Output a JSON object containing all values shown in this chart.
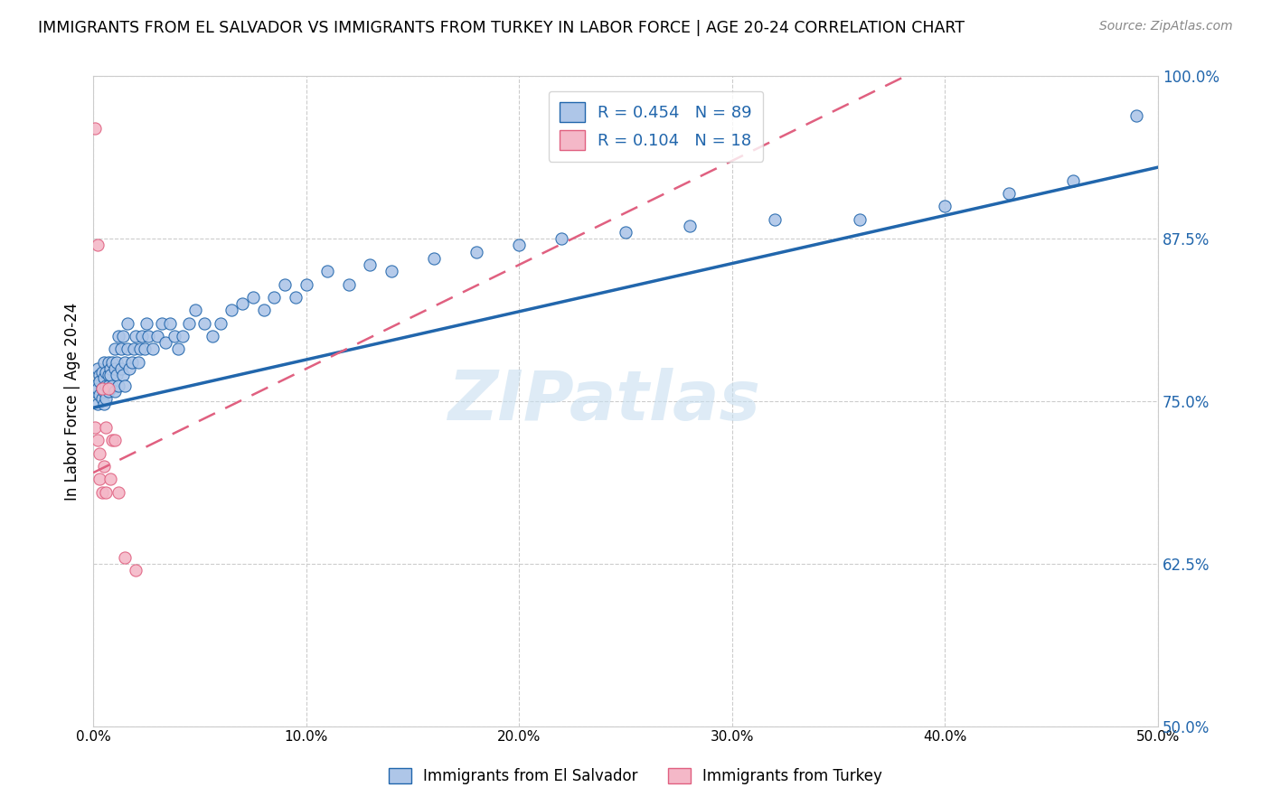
{
  "title": "IMMIGRANTS FROM EL SALVADOR VS IMMIGRANTS FROM TURKEY IN LABOR FORCE | AGE 20-24 CORRELATION CHART",
  "source": "Source: ZipAtlas.com",
  "ylabel": "In Labor Force | Age 20-24",
  "yticks": [
    "50.0%",
    "62.5%",
    "75.0%",
    "87.5%",
    "100.0%"
  ],
  "ytick_vals": [
    0.5,
    0.625,
    0.75,
    0.875,
    1.0
  ],
  "xtick_vals": [
    0.0,
    0.1,
    0.2,
    0.3,
    0.4,
    0.5
  ],
  "xtick_labels": [
    "0.0%",
    "10.0%",
    "20.0%",
    "30.0%",
    "40.0%",
    "50.0%"
  ],
  "xmin": 0.0,
  "xmax": 0.5,
  "ymin": 0.5,
  "ymax": 1.0,
  "R_el_salvador": 0.454,
  "N_el_salvador": 89,
  "R_turkey": 0.104,
  "N_turkey": 18,
  "color_el_salvador": "#aec6e8",
  "color_turkey": "#f4b8c8",
  "line_color_el_salvador": "#2166ac",
  "line_color_turkey": "#e06080",
  "watermark": "ZIPatlas",
  "el_salvador_x": [
    0.001,
    0.001,
    0.002,
    0.002,
    0.002,
    0.003,
    0.003,
    0.003,
    0.004,
    0.004,
    0.004,
    0.005,
    0.005,
    0.005,
    0.005,
    0.006,
    0.006,
    0.006,
    0.007,
    0.007,
    0.007,
    0.007,
    0.008,
    0.008,
    0.008,
    0.009,
    0.009,
    0.01,
    0.01,
    0.01,
    0.011,
    0.011,
    0.012,
    0.012,
    0.013,
    0.013,
    0.014,
    0.014,
    0.015,
    0.015,
    0.016,
    0.016,
    0.017,
    0.018,
    0.019,
    0.02,
    0.021,
    0.022,
    0.023,
    0.024,
    0.025,
    0.026,
    0.028,
    0.03,
    0.032,
    0.034,
    0.036,
    0.038,
    0.04,
    0.042,
    0.045,
    0.048,
    0.052,
    0.056,
    0.06,
    0.065,
    0.07,
    0.075,
    0.08,
    0.085,
    0.09,
    0.095,
    0.1,
    0.11,
    0.12,
    0.13,
    0.14,
    0.16,
    0.18,
    0.2,
    0.22,
    0.25,
    0.28,
    0.32,
    0.36,
    0.4,
    0.43,
    0.46,
    0.49
  ],
  "el_salvador_y": [
    0.762,
    0.758,
    0.775,
    0.76,
    0.748,
    0.77,
    0.755,
    0.765,
    0.76,
    0.772,
    0.752,
    0.758,
    0.768,
    0.748,
    0.78,
    0.762,
    0.752,
    0.772,
    0.758,
    0.77,
    0.78,
    0.762,
    0.775,
    0.76,
    0.77,
    0.762,
    0.78,
    0.758,
    0.775,
    0.79,
    0.77,
    0.78,
    0.762,
    0.8,
    0.775,
    0.79,
    0.77,
    0.8,
    0.78,
    0.762,
    0.79,
    0.81,
    0.775,
    0.78,
    0.79,
    0.8,
    0.78,
    0.79,
    0.8,
    0.79,
    0.81,
    0.8,
    0.79,
    0.8,
    0.81,
    0.795,
    0.81,
    0.8,
    0.79,
    0.8,
    0.81,
    0.82,
    0.81,
    0.8,
    0.81,
    0.82,
    0.825,
    0.83,
    0.82,
    0.83,
    0.84,
    0.83,
    0.84,
    0.85,
    0.84,
    0.855,
    0.85,
    0.86,
    0.865,
    0.87,
    0.875,
    0.88,
    0.885,
    0.89,
    0.89,
    0.9,
    0.91,
    0.92,
    0.97
  ],
  "turkey_x": [
    0.001,
    0.001,
    0.002,
    0.002,
    0.003,
    0.003,
    0.004,
    0.004,
    0.005,
    0.006,
    0.006,
    0.007,
    0.008,
    0.009,
    0.01,
    0.012,
    0.015,
    0.02
  ],
  "turkey_y": [
    0.96,
    0.73,
    0.87,
    0.72,
    0.71,
    0.69,
    0.68,
    0.76,
    0.7,
    0.73,
    0.68,
    0.76,
    0.69,
    0.72,
    0.72,
    0.68,
    0.63,
    0.62
  ]
}
